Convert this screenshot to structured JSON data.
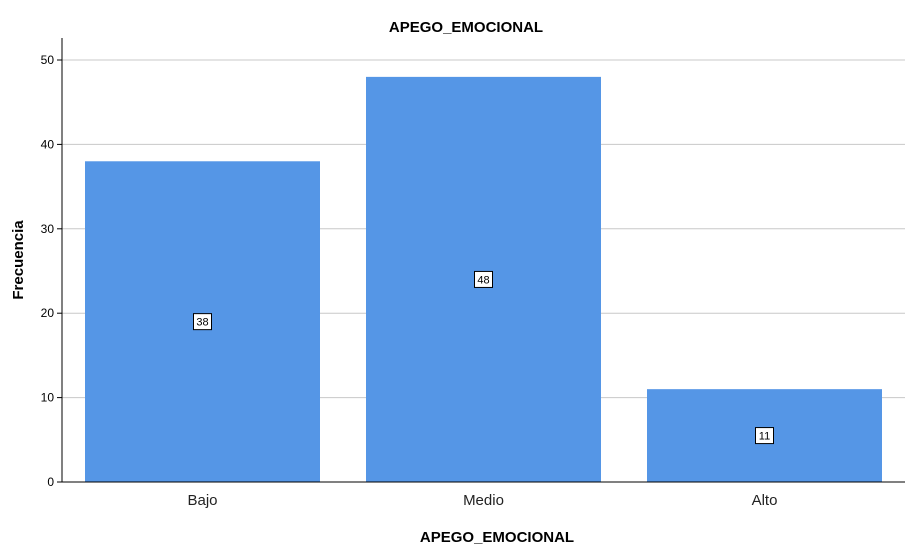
{
  "chart_data": {
    "type": "bar",
    "title": "APEGO_EMOCIONAL",
    "xlabel": "APEGO_EMOCIONAL",
    "ylabel": "Frecuencia",
    "categories": [
      "Bajo",
      "Medio",
      "Alto"
    ],
    "values": [
      38,
      48,
      11
    ],
    "data_labels": [
      "38",
      "48",
      "11"
    ],
    "ylim": [
      0,
      52
    ],
    "yticks": [
      0,
      10,
      20,
      30,
      40,
      50
    ],
    "ytick_labels": [
      "0",
      "10",
      "20",
      "30",
      "40",
      "50"
    ],
    "grid": true,
    "bar_color": "#5596e6",
    "grid_color": "#c8c8c8"
  }
}
